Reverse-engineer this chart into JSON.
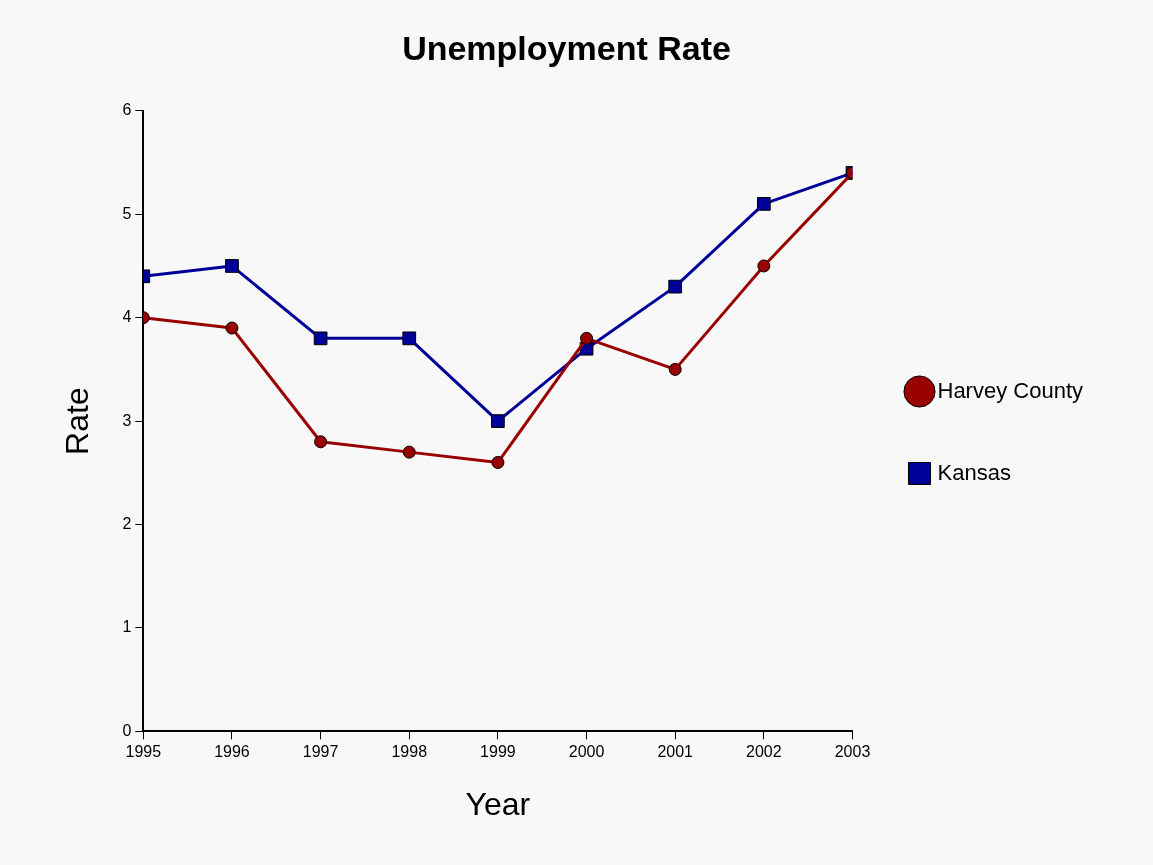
{
  "chart_data": {
    "type": "line",
    "title": "Unemployment Rate",
    "xlabel": "Year",
    "ylabel": "Rate",
    "x": [
      1995,
      1996,
      1997,
      1998,
      1999,
      2000,
      2001,
      2002,
      2003
    ],
    "series": [
      {
        "name": "Harvey County",
        "color": "#990000",
        "marker": "circle",
        "values": [
          4.0,
          3.9,
          2.8,
          2.7,
          2.6,
          3.8,
          3.5,
          4.5,
          5.4
        ]
      },
      {
        "name": "Kansas",
        "color": "#000099",
        "marker": "square",
        "values": [
          4.4,
          4.5,
          3.8,
          3.8,
          3.0,
          3.7,
          4.3,
          5.1,
          5.4
        ]
      }
    ],
    "xlim": [
      1995,
      2003
    ],
    "xticks": [
      1995,
      1996,
      1997,
      1998,
      1999,
      2000,
      2001,
      2002,
      2003
    ],
    "ylim": [
      0,
      6
    ],
    "yticks": [
      0,
      1,
      2,
      3,
      4,
      5,
      6
    ],
    "grid": false,
    "legend": "right",
    "line_style": "solid"
  }
}
